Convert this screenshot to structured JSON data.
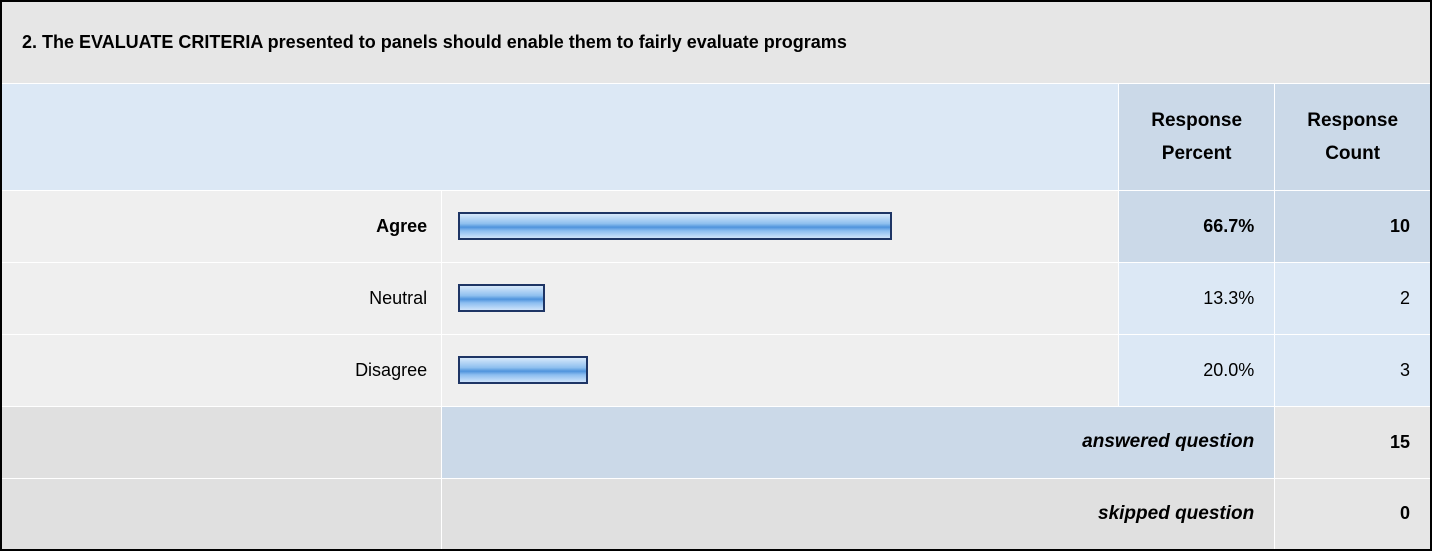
{
  "question": {
    "title": "2. The EVALUATE CRITERIA presented to panels should enable them to fairly evaluate programs"
  },
  "columns": {
    "percent_line1": "Response",
    "percent_line2": "Percent",
    "count_line1": "Response",
    "count_line2": "Count"
  },
  "chart_data": {
    "type": "bar",
    "orientation": "horizontal",
    "categories": [
      "Agree",
      "Neutral",
      "Disagree"
    ],
    "values": [
      66.7,
      13.3,
      20.0
    ],
    "ylim": [
      0,
      100
    ],
    "grid": false,
    "legend": "none"
  },
  "rows": [
    {
      "label": "Agree",
      "percent_text": "66.7%",
      "count": "10"
    },
    {
      "label": "Neutral",
      "percent_text": "13.3%",
      "count": "2"
    },
    {
      "label": "Disagree",
      "percent_text": "20.0%",
      "count": "3"
    }
  ],
  "summary": {
    "answered_label": "answered question",
    "answered_value": "15",
    "skipped_label": "skipped question",
    "skipped_value": "0"
  },
  "colors": {
    "bar_border": "#1e3565",
    "bar_fill": "#4f94dc",
    "header_bg": "#cbd9e8",
    "title_bg": "#e6e6e6"
  }
}
